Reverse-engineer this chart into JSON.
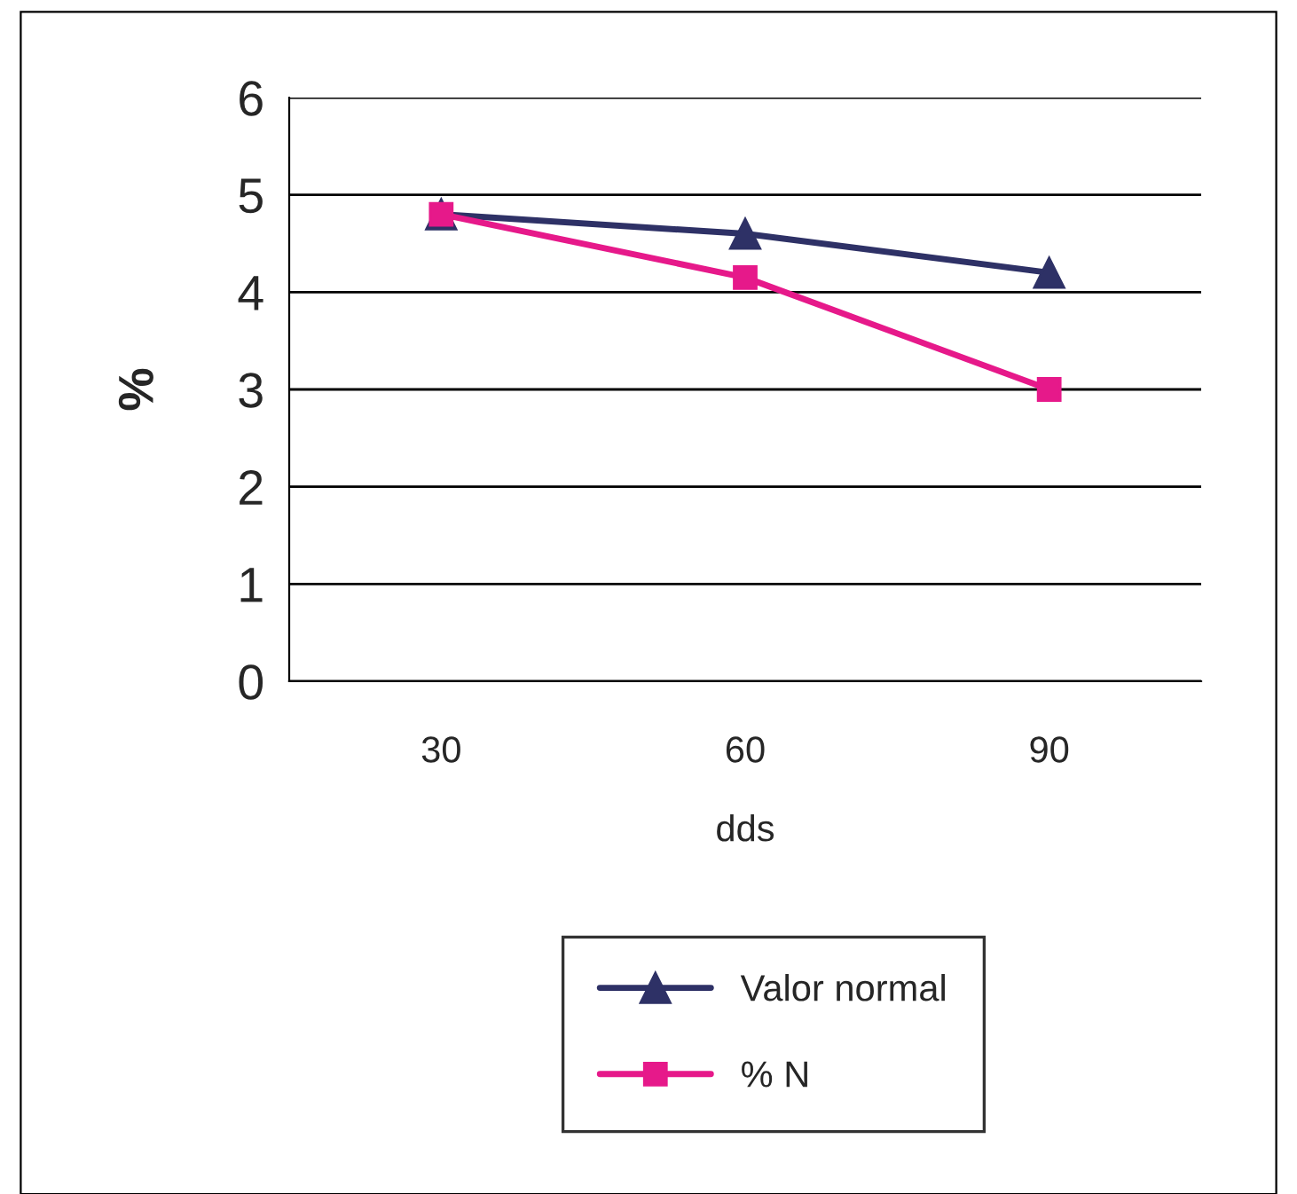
{
  "chart_data": {
    "type": "line",
    "xlabel": "dds",
    "ylabel": "%",
    "categories": [
      "30",
      "60",
      "90"
    ],
    "series": [
      {
        "name": "Valor normal",
        "color": "#2e3166",
        "marker": "triangle",
        "values": [
          4.8,
          4.6,
          4.2
        ]
      },
      {
        "name": "% N",
        "color": "#e6198a",
        "marker": "square",
        "values": [
          4.8,
          4.15,
          3.0
        ]
      }
    ],
    "ylim": [
      0,
      6
    ],
    "yticks": [
      0,
      1,
      2,
      3,
      4,
      5,
      6
    ],
    "grid": "y",
    "legend": "bottom"
  }
}
